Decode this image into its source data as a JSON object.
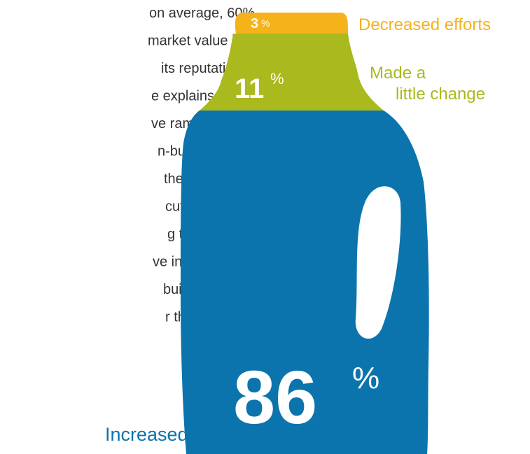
{
  "chart_data": {
    "type": "pictorial",
    "text_lines": [
      "on average, 60%",
      "market value is",
      "its reputation.",
      "e explains why",
      "ve ramped up",
      "n-building",
      "the vast",
      "cutives",
      "g that their",
      "ve increased",
      "build",
      "r the past"
    ],
    "categories": [
      "Increased efforts",
      "Made a little change",
      "Decreased efforts"
    ],
    "category_lines": [
      [
        "Increased efforts"
      ],
      [
        "Made a",
        "little change"
      ],
      [
        "Decreased efforts"
      ]
    ],
    "values": [
      86,
      11,
      3
    ],
    "unit": "%",
    "colors": [
      "#0b74ad",
      "#a9b91e",
      "#f5b21b"
    ]
  }
}
